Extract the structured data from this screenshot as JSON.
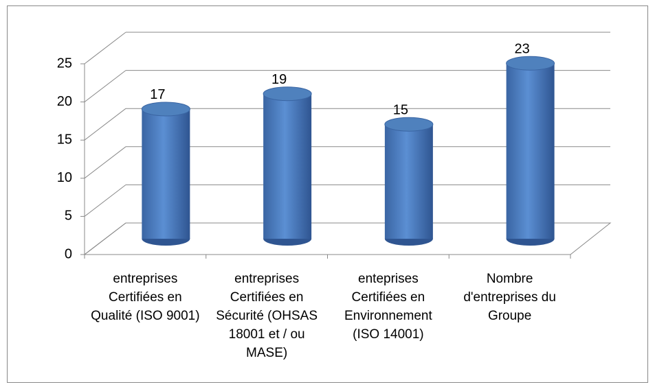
{
  "chart_data": {
    "type": "bar3d",
    "categories": [
      "entreprises Certifiées en Qualité (ISO 9001)",
      "entreprises Certifiées en Sécurité (OHSAS 18001 et / ou MASE)",
      "enteprises Certifiées en Environnement (ISO 14001)",
      "Nombre d'entreprises du Groupe"
    ],
    "values": [
      17,
      19,
      15,
      23
    ],
    "color": "#4f81bd",
    "ylim": [
      0,
      25
    ],
    "yticks": [
      0,
      5,
      10,
      15,
      20,
      25
    ],
    "grid": true
  }
}
